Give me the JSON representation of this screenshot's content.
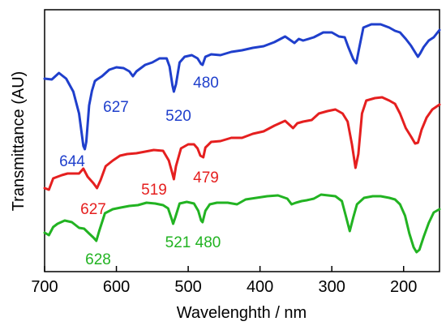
{
  "chart_data": {
    "type": "line",
    "title": "",
    "xlabel": "Wavelenghth / nm",
    "ylabel": "Transmittance (AU)",
    "xlim": [
      700,
      150
    ],
    "x_reversed": true,
    "y_ticks": false,
    "x_ticks": [
      700,
      600,
      500,
      400,
      300,
      200
    ],
    "x_tick_labels": [
      "700",
      "600",
      "500",
      "400",
      "300",
      "200"
    ],
    "series": [
      {
        "color": "#1f3fcc",
        "points": [
          [
            700,
            97
          ],
          [
            690,
            98
          ],
          [
            680,
            90
          ],
          [
            670,
            97
          ],
          [
            660,
            113
          ],
          [
            652,
            140
          ],
          [
            646,
            180
          ],
          [
            644,
            184
          ],
          [
            642,
            175
          ],
          [
            638,
            130
          ],
          [
            634,
            112
          ],
          [
            630,
            100
          ],
          [
            627,
            98
          ],
          [
            620,
            94
          ],
          [
            610,
            86
          ],
          [
            600,
            83
          ],
          [
            590,
            84
          ],
          [
            582,
            88
          ],
          [
            577,
            94
          ],
          [
            572,
            88
          ],
          [
            560,
            80
          ],
          [
            550,
            77
          ],
          [
            540,
            72
          ],
          [
            530,
            72
          ],
          [
            526,
            82
          ],
          [
            522,
            105
          ],
          [
            520,
            113
          ],
          [
            517,
            104
          ],
          [
            512,
            77
          ],
          [
            505,
            70
          ],
          [
            495,
            68
          ],
          [
            487,
            72
          ],
          [
            482,
            79
          ],
          [
            480,
            80
          ],
          [
            476,
            70
          ],
          [
            468,
            67
          ],
          [
            455,
            68
          ],
          [
            440,
            64
          ],
          [
            425,
            62
          ],
          [
            410,
            59
          ],
          [
            395,
            57
          ],
          [
            380,
            52
          ],
          [
            365,
            45
          ],
          [
            352,
            53
          ],
          [
            346,
            48
          ],
          [
            340,
            50
          ],
          [
            325,
            46
          ],
          [
            312,
            40
          ],
          [
            300,
            40
          ],
          [
            290,
            45
          ],
          [
            282,
            46
          ],
          [
            277,
            58
          ],
          [
            270,
            73
          ],
          [
            266,
            78
          ],
          [
            262,
            60
          ],
          [
            256,
            34
          ],
          [
            245,
            30
          ],
          [
            232,
            30
          ],
          [
            220,
            34
          ],
          [
            212,
            38
          ],
          [
            205,
            40
          ],
          [
            197,
            48
          ],
          [
            190,
            56
          ],
          [
            183,
            66
          ],
          [
            180,
            70
          ],
          [
            177,
            66
          ],
          [
            172,
            58
          ],
          [
            165,
            50
          ],
          [
            158,
            46
          ],
          [
            150,
            37
          ]
        ]
      },
      {
        "color": "#e51f1f",
        "points": [
          [
            700,
            232
          ],
          [
            694,
            234
          ],
          [
            688,
            220
          ],
          [
            682,
            218
          ],
          [
            676,
            216
          ],
          [
            668,
            214
          ],
          [
            660,
            214
          ],
          [
            652,
            214
          ],
          [
            646,
            208
          ],
          [
            640,
            218
          ],
          [
            632,
            226
          ],
          [
            627,
            232
          ],
          [
            622,
            222
          ],
          [
            615,
            205
          ],
          [
            605,
            198
          ],
          [
            595,
            192
          ],
          [
            585,
            190
          ],
          [
            572,
            189
          ],
          [
            560,
            187
          ],
          [
            548,
            185
          ],
          [
            535,
            186
          ],
          [
            527,
            198
          ],
          [
            522,
            214
          ],
          [
            520,
            221
          ],
          [
            517,
            205
          ],
          [
            510,
            183
          ],
          [
            500,
            178
          ],
          [
            492,
            178
          ],
          [
            487,
            183
          ],
          [
            483,
            192
          ],
          [
            479,
            194
          ],
          [
            476,
            182
          ],
          [
            468,
            175
          ],
          [
            455,
            174
          ],
          [
            440,
            170
          ],
          [
            425,
            170
          ],
          [
            410,
            165
          ],
          [
            395,
            162
          ],
          [
            380,
            155
          ],
          [
            365,
            149
          ],
          [
            354,
            158
          ],
          [
            348,
            152
          ],
          [
            340,
            150
          ],
          [
            328,
            148
          ],
          [
            318,
            140
          ],
          [
            306,
            137
          ],
          [
            295,
            135
          ],
          [
            285,
            140
          ],
          [
            278,
            150
          ],
          [
            272,
            178
          ],
          [
            267,
            207
          ],
          [
            263,
            190
          ],
          [
            258,
            140
          ],
          [
            252,
            124
          ],
          [
            240,
            121
          ],
          [
            230,
            120
          ],
          [
            220,
            124
          ],
          [
            212,
            128
          ],
          [
            205,
            140
          ],
          [
            197,
            158
          ],
          [
            190,
            168
          ],
          [
            184,
            177
          ],
          [
            180,
            176
          ],
          [
            175,
            160
          ],
          [
            168,
            145
          ],
          [
            160,
            135
          ],
          [
            150,
            129
          ]
        ]
      },
      {
        "color": "#22b322",
        "points": [
          [
            700,
            287
          ],
          [
            694,
            290
          ],
          [
            688,
            280
          ],
          [
            682,
            276
          ],
          [
            672,
            272
          ],
          [
            662,
            274
          ],
          [
            652,
            281
          ],
          [
            645,
            282
          ],
          [
            638,
            288
          ],
          [
            632,
            293
          ],
          [
            628,
            297
          ],
          [
            624,
            285
          ],
          [
            616,
            263
          ],
          [
            605,
            258
          ],
          [
            594,
            256
          ],
          [
            582,
            254
          ],
          [
            570,
            253
          ],
          [
            558,
            250
          ],
          [
            546,
            251
          ],
          [
            535,
            253
          ],
          [
            528,
            257
          ],
          [
            523,
            270
          ],
          [
            521,
            276
          ],
          [
            518,
            268
          ],
          [
            512,
            251
          ],
          [
            502,
            249
          ],
          [
            492,
            251
          ],
          [
            486,
            260
          ],
          [
            482,
            272
          ],
          [
            480,
            274
          ],
          [
            476,
            260
          ],
          [
            470,
            252
          ],
          [
            460,
            250
          ],
          [
            445,
            250
          ],
          [
            432,
            252
          ],
          [
            420,
            246
          ],
          [
            405,
            244
          ],
          [
            390,
            242
          ],
          [
            375,
            241
          ],
          [
            362,
            245
          ],
          [
            356,
            252
          ],
          [
            350,
            250
          ],
          [
            342,
            248
          ],
          [
            335,
            247
          ],
          [
            325,
            245
          ],
          [
            315,
            240
          ],
          [
            305,
            241
          ],
          [
            295,
            242
          ],
          [
            286,
            248
          ],
          [
            280,
            268
          ],
          [
            275,
            285
          ],
          [
            270,
            268
          ],
          [
            265,
            252
          ],
          [
            255,
            244
          ],
          [
            243,
            242
          ],
          [
            232,
            242
          ],
          [
            220,
            244
          ],
          [
            212,
            246
          ],
          [
            205,
            252
          ],
          [
            198,
            266
          ],
          [
            192,
            288
          ],
          [
            186,
            305
          ],
          [
            182,
            311
          ],
          [
            178,
            308
          ],
          [
            172,
            292
          ],
          [
            165,
            275
          ],
          [
            158,
            262
          ],
          [
            150,
            258
          ]
        ]
      }
    ],
    "annotations": [
      {
        "text": "644",
        "color": "#1f3fcc"
      },
      {
        "text": "627",
        "color": "#1f3fcc"
      },
      {
        "text": "520",
        "color": "#1f3fcc"
      },
      {
        "text": "480",
        "color": "#1f3fcc"
      },
      {
        "text": "627",
        "color": "#e51f1f"
      },
      {
        "text": "519",
        "color": "#e51f1f"
      },
      {
        "text": "479",
        "color": "#e51f1f"
      },
      {
        "text": "628",
        "color": "#22b322"
      },
      {
        "text": "521 480",
        "color": "#22b322"
      }
    ]
  }
}
